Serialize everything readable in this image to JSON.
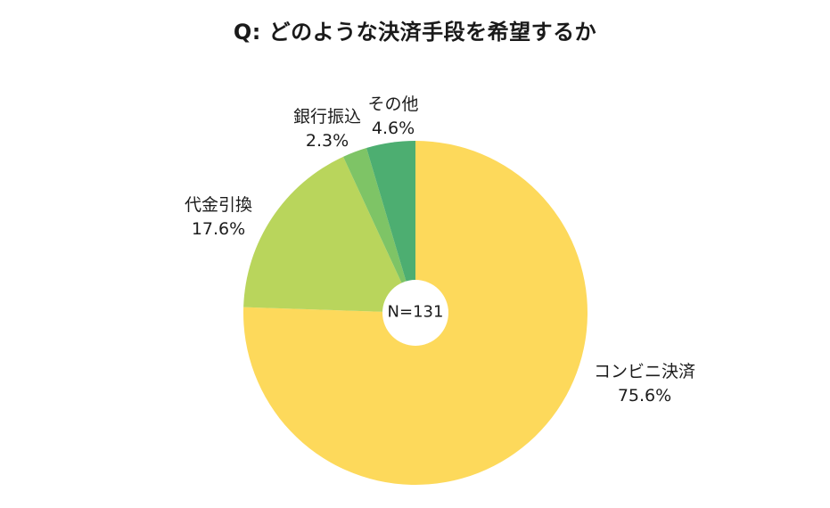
{
  "chart_data": {
    "type": "pie",
    "variant": "donut",
    "title": "Q: どのような決済手段を希望するか",
    "center_label": "N=131",
    "direction": "clockwise",
    "start_angle_deg": 0,
    "legend_position": "none",
    "slices": [
      {
        "label": "コンビニ決済",
        "value": 75.6,
        "pct_label": "75.6%",
        "color": "#FDD95B"
      },
      {
        "label": "代金引換",
        "value": 17.6,
        "pct_label": "17.6%",
        "color": "#B9D55C"
      },
      {
        "label": "銀行振込",
        "value": 2.3,
        "pct_label": "2.3%",
        "color": "#7EC466"
      },
      {
        "label": "その他",
        "value": 4.6,
        "pct_label": "4.6%",
        "color": "#4DAE71"
      }
    ]
  }
}
